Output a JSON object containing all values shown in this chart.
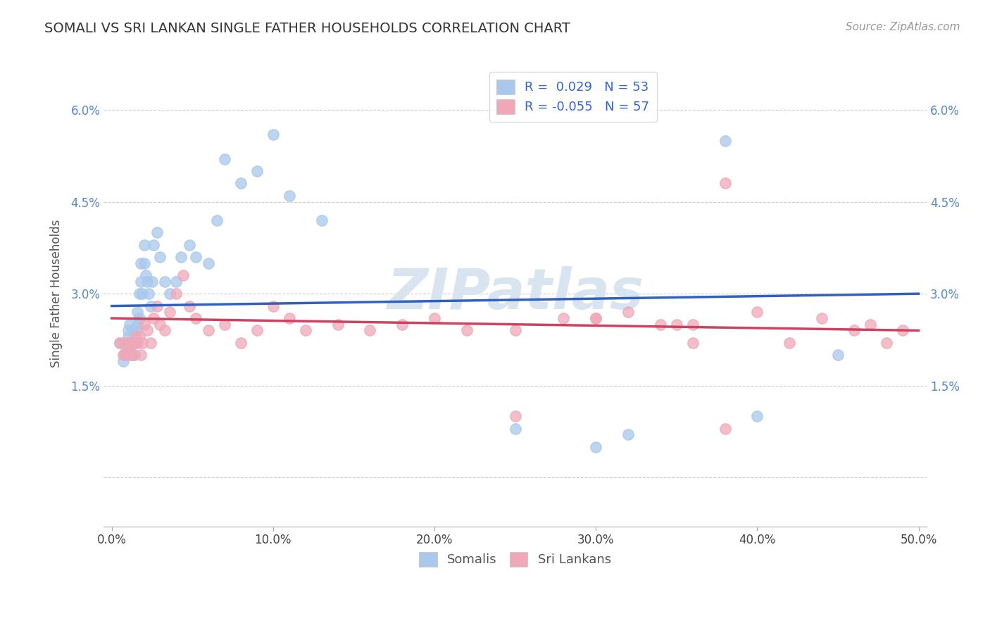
{
  "title": "SOMALI VS SRI LANKAN SINGLE FATHER HOUSEHOLDS CORRELATION CHART",
  "source_text": "Source: ZipAtlas.com",
  "ylabel": "Single Father Households",
  "xlabel": "",
  "xlim": [
    -0.005,
    0.505
  ],
  "ylim": [
    -0.008,
    0.068
  ],
  "xticks": [
    0.0,
    0.1,
    0.2,
    0.3,
    0.4,
    0.5
  ],
  "xtick_labels": [
    "0.0%",
    "10.0%",
    "20.0%",
    "30.0%",
    "40.0%",
    "50.0%"
  ],
  "yticks": [
    0.0,
    0.015,
    0.03,
    0.045,
    0.06
  ],
  "ytick_labels": [
    "",
    "1.5%",
    "3.0%",
    "4.5%",
    "6.0%"
  ],
  "legend_r1": "R =  0.029   N = 53",
  "legend_r2": "R = -0.055   N = 57",
  "somali_color": "#a8c8ec",
  "srilanka_color": "#f0a8b8",
  "trend_somali_color": "#3060c0",
  "trend_srilanka_color": "#d04060",
  "watermark": "ZIPatlas",
  "watermark_color": "#d8e4f0",
  "somalis_x": [
    0.005,
    0.007,
    0.008,
    0.009,
    0.01,
    0.01,
    0.011,
    0.011,
    0.012,
    0.012,
    0.013,
    0.013,
    0.014,
    0.014,
    0.015,
    0.015,
    0.016,
    0.016,
    0.017,
    0.017,
    0.018,
    0.018,
    0.019,
    0.02,
    0.02,
    0.021,
    0.022,
    0.023,
    0.024,
    0.025,
    0.026,
    0.028,
    0.03,
    0.033,
    0.036,
    0.04,
    0.043,
    0.048,
    0.052,
    0.06,
    0.065,
    0.07,
    0.08,
    0.09,
    0.1,
    0.11,
    0.13,
    0.25,
    0.3,
    0.32,
    0.38,
    0.4,
    0.45
  ],
  "somalis_y": [
    0.022,
    0.019,
    0.02,
    0.021,
    0.023,
    0.024,
    0.025,
    0.022,
    0.022,
    0.02,
    0.024,
    0.022,
    0.02,
    0.022,
    0.024,
    0.022,
    0.025,
    0.027,
    0.026,
    0.03,
    0.032,
    0.035,
    0.03,
    0.038,
    0.035,
    0.033,
    0.032,
    0.03,
    0.028,
    0.032,
    0.038,
    0.04,
    0.036,
    0.032,
    0.03,
    0.032,
    0.036,
    0.038,
    0.036,
    0.035,
    0.042,
    0.052,
    0.048,
    0.05,
    0.056,
    0.046,
    0.042,
    0.008,
    0.005,
    0.007,
    0.055,
    0.01,
    0.02
  ],
  "srilanka_x": [
    0.005,
    0.007,
    0.008,
    0.009,
    0.01,
    0.011,
    0.012,
    0.013,
    0.014,
    0.015,
    0.016,
    0.017,
    0.018,
    0.019,
    0.02,
    0.022,
    0.024,
    0.026,
    0.028,
    0.03,
    0.033,
    0.036,
    0.04,
    0.044,
    0.048,
    0.052,
    0.06,
    0.07,
    0.08,
    0.09,
    0.1,
    0.11,
    0.12,
    0.14,
    0.16,
    0.18,
    0.2,
    0.22,
    0.25,
    0.28,
    0.3,
    0.32,
    0.35,
    0.36,
    0.38,
    0.4,
    0.42,
    0.44,
    0.46,
    0.47,
    0.48,
    0.49,
    0.3,
    0.34,
    0.36,
    0.25,
    0.38
  ],
  "srilanka_y": [
    0.022,
    0.02,
    0.022,
    0.02,
    0.022,
    0.021,
    0.02,
    0.02,
    0.022,
    0.023,
    0.022,
    0.023,
    0.02,
    0.022,
    0.025,
    0.024,
    0.022,
    0.026,
    0.028,
    0.025,
    0.024,
    0.027,
    0.03,
    0.033,
    0.028,
    0.026,
    0.024,
    0.025,
    0.022,
    0.024,
    0.028,
    0.026,
    0.024,
    0.025,
    0.024,
    0.025,
    0.026,
    0.024,
    0.024,
    0.026,
    0.026,
    0.027,
    0.025,
    0.025,
    0.048,
    0.027,
    0.022,
    0.026,
    0.024,
    0.025,
    0.022,
    0.024,
    0.026,
    0.025,
    0.022,
    0.01,
    0.008
  ],
  "trend_somali_x0": 0.0,
  "trend_somali_x1": 0.5,
  "trend_somali_y0": 0.028,
  "trend_somali_y1": 0.03,
  "trend_srilanka_x0": 0.0,
  "trend_srilanka_x1": 0.5,
  "trend_srilanka_y0": 0.026,
  "trend_srilanka_y1": 0.024
}
